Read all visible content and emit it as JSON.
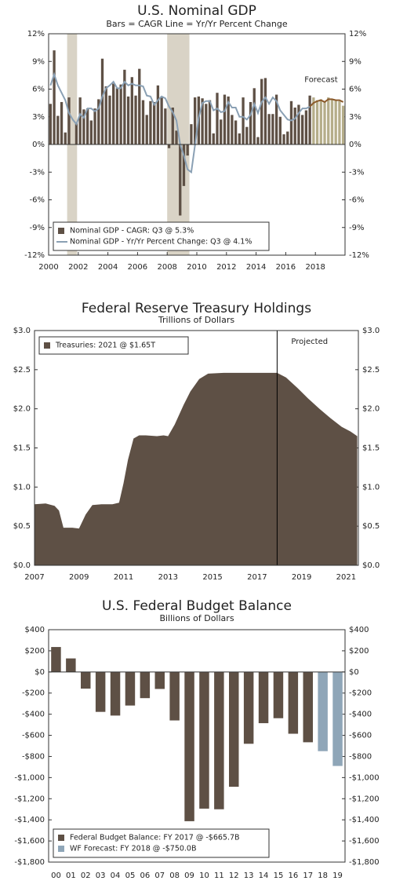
{
  "chart_data": [
    {
      "type": "bar",
      "title": "U.S. Nominal GDP",
      "subtitle": "Bars = CAGR     Line = Yr/Yr Percent Change",
      "x": [
        2000,
        2000.25,
        2000.5,
        2000.75,
        2001,
        2001.25,
        2001.5,
        2001.75,
        2002,
        2002.25,
        2002.5,
        2002.75,
        2003,
        2003.25,
        2003.5,
        2003.75,
        2004,
        2004.25,
        2004.5,
        2004.75,
        2005,
        2005.25,
        2005.5,
        2005.75,
        2006,
        2006.25,
        2006.5,
        2006.75,
        2007,
        2007.25,
        2007.5,
        2007.75,
        2008,
        2008.25,
        2008.5,
        2008.75,
        2009,
        2009.25,
        2009.5,
        2009.75,
        2010,
        2010.25,
        2010.5,
        2010.75,
        2011,
        2011.25,
        2011.5,
        2011.75,
        2012,
        2012.25,
        2012.5,
        2012.75,
        2013,
        2013.25,
        2013.5,
        2013.75,
        2014,
        2014.25,
        2014.5,
        2014.75,
        2015,
        2015.25,
        2015.5,
        2015.75,
        2016,
        2016.25,
        2016.5,
        2016.75,
        2017,
        2017.25,
        2017.5,
        2017.75,
        2018,
        2018.25,
        2018.5,
        2018.75,
        2019,
        2019.25,
        2019.5,
        2019.75
      ],
      "series": [
        {
          "name": "Nominal GDP - CAGR: Q3 @ 5.3%",
          "type": "bar",
          "color": "#5e5045",
          "values": [
            4.4,
            10.2,
            3.1,
            4.6,
            1.3,
            5.1,
            0.0,
            2.4,
            5.1,
            3.8,
            3.9,
            2.6,
            3.9,
            4.9,
            9.3,
            6.3,
            5.3,
            6.6,
            6.1,
            6.5,
            8.1,
            5.2,
            7.3,
            5.3,
            8.2,
            4.8,
            3.2,
            4.7,
            4.6,
            6.4,
            5.2,
            3.9,
            -0.4,
            4.0,
            1.5,
            -7.7,
            -4.5,
            -1.2,
            2.2,
            5.1,
            5.2,
            5.0,
            4.4,
            4.8,
            1.2,
            5.6,
            2.7,
            5.4,
            5.2,
            3.2,
            2.6,
            1.2,
            5.1,
            1.9,
            4.6,
            6.1,
            0.8,
            7.1,
            7.2,
            3.3,
            3.3,
            5.4,
            3.0,
            1.1,
            1.4,
            4.7,
            4.0,
            4.3,
            3.2,
            3.7,
            5.3,
            5.1,
            4.8,
            4.9,
            4.6,
            5.1,
            4.9,
            4.8,
            4.7,
            4.2
          ]
        },
        {
          "name": "Nominal GDP - Yr/Yr Percent Change: Q3 @ 4.1%",
          "type": "line",
          "color": "#8aa0b4",
          "values": [
            6.4,
            7.6,
            6.4,
            5.6,
            4.8,
            3.4,
            2.7,
            2.2,
            3.3,
            2.9,
            3.9,
            3.9,
            3.6,
            3.9,
            5.2,
            6.1,
            6.4,
            6.8,
            6.1,
            6.1,
            6.8,
            6.4,
            6.6,
            6.4,
            6.4,
            6.3,
            5.3,
            5.2,
            4.3,
            4.8,
            5.2,
            5.0,
            4.1,
            3.5,
            2.6,
            0.0,
            -1.2,
            -2.7,
            -3.0,
            -0.1,
            2.9,
            4.5,
            4.7,
            4.7,
            3.7,
            3.9,
            3.5,
            3.6,
            4.6,
            4.0,
            4.0,
            3.0,
            3.0,
            2.7,
            3.2,
            4.4,
            3.4,
            4.6,
            5.1,
            4.4,
            5.1,
            4.7,
            3.7,
            3.2,
            2.7,
            2.6,
            2.8,
            3.4,
            3.9,
            3.9,
            4.1,
            4.5,
            4.7,
            4.8,
            4.6,
            4.9,
            4.9,
            4.8,
            4.8,
            4.6
          ]
        }
      ],
      "forecast": {
        "label": "Forecast",
        "from": 2017.75,
        "bar_color": "#b5ad8a",
        "line_color": "#8b5a2b"
      },
      "shaded_periods": [
        [
          2001.25,
          2001.92
        ],
        [
          2008.0,
          2009.5
        ]
      ],
      "shade_color": "#d9d3c6",
      "xlim": [
        2000,
        2020
      ],
      "xticks": [
        2000,
        2002,
        2004,
        2006,
        2008,
        2010,
        2012,
        2014,
        2016,
        2018
      ],
      "ylim": [
        -12,
        12
      ],
      "yticks": [
        {
          "value": -12,
          "label": "-12%"
        },
        {
          "value": -9,
          "label": "-9%"
        },
        {
          "value": -6,
          "label": "-6%"
        },
        {
          "value": -3,
          "label": "-3%"
        },
        {
          "value": 0,
          "label": "0%"
        },
        {
          "value": 3,
          "label": "3%"
        },
        {
          "value": 6,
          "label": "6%"
        },
        {
          "value": 9,
          "label": "9%"
        },
        {
          "value": 12,
          "label": "12%"
        }
      ],
      "legend": "lower left"
    },
    {
      "type": "area",
      "title": "Federal Reserve Treasury Holdings",
      "subtitle": "Trillions of Dollars",
      "x": [
        2007.0,
        2007.5,
        2007.9,
        2008.1,
        2008.3,
        2008.7,
        2009.0,
        2009.3,
        2009.6,
        2010.0,
        2010.5,
        2010.8,
        2011.0,
        2011.2,
        2011.45,
        2011.7,
        2012.0,
        2012.5,
        2012.8,
        2013.0,
        2013.3,
        2013.7,
        2014.0,
        2014.4,
        2014.8,
        2015.5,
        2016.5,
        2017.5,
        2017.9,
        2018.3,
        2018.8,
        2019.3,
        2019.8,
        2020.3,
        2020.8,
        2021.2,
        2021.5
      ],
      "series": [
        {
          "name": "Treasuries: 2021 @ $1.65T",
          "color": "#5e5045",
          "values": [
            0.78,
            0.79,
            0.76,
            0.7,
            0.48,
            0.48,
            0.47,
            0.65,
            0.77,
            0.78,
            0.78,
            0.8,
            1.05,
            1.35,
            1.62,
            1.66,
            1.66,
            1.65,
            1.66,
            1.65,
            1.8,
            2.05,
            2.22,
            2.38,
            2.45,
            2.46,
            2.46,
            2.46,
            2.46,
            2.4,
            2.27,
            2.13,
            2.0,
            1.88,
            1.77,
            1.71,
            1.65
          ]
        }
      ],
      "projected": {
        "label": "Projected",
        "from": 2017.9
      },
      "xlim": [
        2007,
        2021.55
      ],
      "xticks": [
        2007,
        2009,
        2011,
        2013,
        2015,
        2017,
        2019,
        2021
      ],
      "ylim": [
        0,
        3
      ],
      "yticks": [
        {
          "value": 0,
          "label": "$0.0"
        },
        {
          "value": 0.5,
          "label": "$0.5"
        },
        {
          "value": 1,
          "label": "$1.0"
        },
        {
          "value": 1.5,
          "label": "$1.5"
        },
        {
          "value": 2,
          "label": "$2.0"
        },
        {
          "value": 2.5,
          "label": "$2.5"
        },
        {
          "value": 3,
          "label": "$3.0"
        }
      ],
      "legend": "upper left"
    },
    {
      "type": "bar",
      "title": "U.S. Federal Budget Balance",
      "subtitle": "Billions of Dollars",
      "categories": [
        "00",
        "01",
        "02",
        "03",
        "04",
        "05",
        "06",
        "07",
        "08",
        "09",
        "10",
        "11",
        "12",
        "13",
        "14",
        "15",
        "16",
        "17",
        "18",
        "19"
      ],
      "series": [
        {
          "name": "Federal Budget Balance: FY 2017 @ -$665.7B",
          "color": "#5e5045",
          "values": [
            236,
            128,
            -158,
            -378,
            -413,
            -318,
            -248,
            -161,
            -459,
            -1413,
            -1294,
            -1300,
            -1087,
            -680,
            -485,
            -438,
            -585,
            -665.7,
            null,
            null
          ]
        },
        {
          "name": "WF Forecast: FY 2018 @ -$750.0B",
          "color": "#8fa6b8",
          "values": [
            null,
            null,
            null,
            null,
            null,
            null,
            null,
            null,
            null,
            null,
            null,
            null,
            null,
            null,
            null,
            null,
            null,
            null,
            -750,
            -890
          ]
        }
      ],
      "ylim": [
        -1800,
        400
      ],
      "yticks": [
        {
          "value": -1800,
          "label": "-$1,800"
        },
        {
          "value": -1600,
          "label": "-$1,600"
        },
        {
          "value": -1400,
          "label": "-$1,400"
        },
        {
          "value": -1200,
          "label": "-$1,200"
        },
        {
          "value": -1000,
          "label": "-$1,000"
        },
        {
          "value": -800,
          "label": "-$800"
        },
        {
          "value": -600,
          "label": "-$600"
        },
        {
          "value": -400,
          "label": "-$400"
        },
        {
          "value": -200,
          "label": "-$200"
        },
        {
          "value": 0,
          "label": "$0"
        },
        {
          "value": 200,
          "label": "$200"
        },
        {
          "value": 400,
          "label": "$400"
        }
      ],
      "legend": "lower left"
    }
  ]
}
